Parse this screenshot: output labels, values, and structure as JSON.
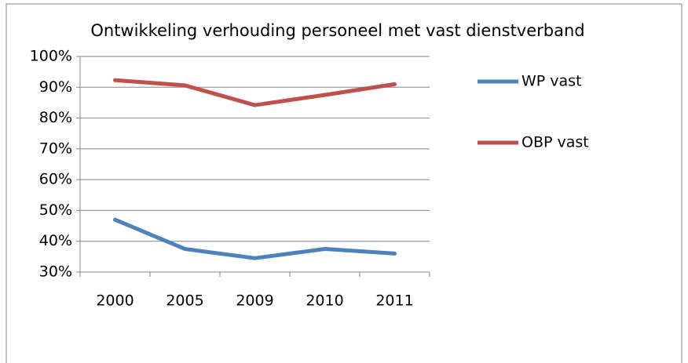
{
  "chart_data": {
    "type": "line",
    "title": "Ontwikkeling verhouding personeel met vast dienstverband",
    "categories": [
      "2000",
      "2005",
      "2009",
      "2010",
      "2011"
    ],
    "series": [
      {
        "name": "WP vast",
        "color": "#4f81bd",
        "values": [
          47,
          37.5,
          34.5,
          37.5,
          36
        ]
      },
      {
        "name": "OBP vast",
        "color": "#c0504d",
        "values": [
          92.3,
          90.6,
          84.2,
          87.5,
          91
        ]
      }
    ],
    "ylim": [
      30,
      100
    ],
    "yticks": [
      {
        "value": 30,
        "label": "30%"
      },
      {
        "value": 40,
        "label": "40%"
      },
      {
        "value": 50,
        "label": "50%"
      },
      {
        "value": 60,
        "label": "60%"
      },
      {
        "value": 70,
        "label": "70%"
      },
      {
        "value": 80,
        "label": "80%"
      },
      {
        "value": 90,
        "label": "90%"
      },
      {
        "value": 100,
        "label": "100%"
      }
    ],
    "grid": true,
    "legend": "right"
  }
}
